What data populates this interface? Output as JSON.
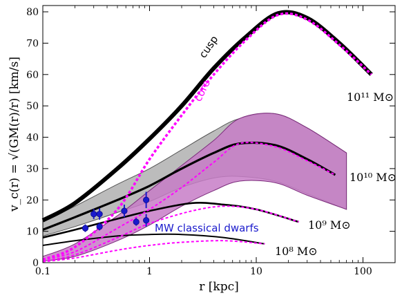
{
  "chart_data": {
    "type": "line",
    "xlabel": "r [kpc]",
    "ylabel": "v_c(r) = √(GM(r)/r) [km/s]",
    "xscale": "log",
    "xlim": [
      0.1,
      200
    ],
    "ylim": [
      0,
      82
    ],
    "x_ticks": [
      {
        "value": 0.1,
        "label": "0.1"
      },
      {
        "value": 1,
        "label": "1"
      },
      {
        "value": 10,
        "label": "10"
      },
      {
        "value": 100,
        "label": "100"
      }
    ],
    "y_ticks": [
      {
        "value": 0,
        "label": "0"
      },
      {
        "value": 10,
        "label": "10"
      },
      {
        "value": 20,
        "label": "20"
      },
      {
        "value": 30,
        "label": "30"
      },
      {
        "value": 40,
        "label": "40"
      },
      {
        "value": 50,
        "label": "50"
      },
      {
        "value": 60,
        "label": "60"
      },
      {
        "value": 70,
        "label": "70"
      },
      {
        "value": 80,
        "label": "80"
      }
    ],
    "colors": {
      "cusp": "#000000",
      "core": "#ff00ff",
      "band_cusp": "#a6a6a6",
      "band_core": "#c77dc7",
      "dwarfs": "#1a1acc"
    },
    "annotations": {
      "cusp": "cusp",
      "core": "core",
      "m11": "10¹¹ M⊙",
      "m10": "10¹⁰ M⊙",
      "m9": "10⁹ M⊙",
      "m8": "10⁸ M⊙",
      "dwarfs": "MW classical dwarfs"
    },
    "series": [
      {
        "halo": "m11",
        "profile": "cusp",
        "x": [
          0.1,
          0.2,
          0.5,
          1,
          2,
          4,
          8,
          16,
          30,
          60,
          120
        ],
        "y": [
          13.5,
          19,
          30,
          39.5,
          50,
          62,
          72,
          79.5,
          78,
          70,
          60
        ]
      },
      {
        "halo": "m11",
        "profile": "core",
        "x": [
          0.1,
          0.2,
          0.5,
          1,
          2,
          4,
          8,
          16,
          30,
          60,
          120
        ],
        "y": [
          1,
          5,
          17,
          33,
          47,
          60,
          71,
          79,
          77.5,
          69.5,
          60
        ]
      },
      {
        "halo": "m10",
        "profile": "cusp",
        "x": [
          0.1,
          0.2,
          0.5,
          1,
          2,
          4,
          7,
          15,
          30,
          55
        ],
        "y": [
          10.5,
          14.5,
          20,
          24.5,
          30,
          35,
          38,
          37.5,
          33,
          28
        ]
      },
      {
        "halo": "m10",
        "profile": "core",
        "x": [
          0.1,
          0.2,
          0.5,
          1,
          2,
          4,
          7,
          15,
          30,
          55
        ],
        "y": [
          1,
          3.5,
          11,
          17,
          24,
          32,
          38,
          37,
          32.5,
          28
        ]
      },
      {
        "halo": "m9",
        "profile": "cusp",
        "x": [
          0.1,
          0.2,
          0.5,
          1,
          2.5,
          5,
          10,
          25
        ],
        "y": [
          8,
          10.5,
          14,
          16.5,
          19,
          18.5,
          17,
          13
        ]
      },
      {
        "halo": "m9",
        "profile": "core",
        "x": [
          0.1,
          0.2,
          0.5,
          1,
          2.5,
          5,
          10,
          25
        ],
        "y": [
          0.5,
          2.5,
          8,
          12.5,
          16.5,
          18,
          17,
          13
        ]
      },
      {
        "halo": "m8",
        "profile": "cusp",
        "x": [
          0.1,
          0.2,
          0.5,
          1,
          2,
          5,
          12
        ],
        "y": [
          5.5,
          7,
          8.5,
          9,
          9,
          8,
          6
        ]
      },
      {
        "halo": "m8",
        "profile": "core",
        "x": [
          0.1,
          0.2,
          0.5,
          1,
          2,
          5,
          12
        ],
        "y": [
          0.3,
          1.5,
          4,
          5.5,
          6.5,
          7,
          6
        ]
      }
    ],
    "bands": [
      {
        "name": "m10-cusp",
        "x": [
          0.1,
          0.2,
          0.5,
          1,
          2,
          4,
          7,
          15,
          30,
          70
        ],
        "upper": [
          13,
          18,
          25,
          30,
          36,
          42,
          46,
          47.5,
          43,
          35
        ],
        "lower": [
          8.5,
          11.5,
          16,
          19.5,
          24,
          27,
          27.5,
          26,
          22,
          17
        ]
      },
      {
        "name": "m10-core",
        "x": [
          0.1,
          0.2,
          0.5,
          1,
          2,
          4,
          7,
          15,
          30,
          70
        ],
        "upper": [
          2,
          6,
          15,
          23,
          31,
          39,
          46,
          47.5,
          43,
          35
        ],
        "lower": [
          0.5,
          2,
          7,
          12,
          18,
          23,
          26,
          25.5,
          21.5,
          17
        ]
      }
    ],
    "points": [
      {
        "x": 0.25,
        "y": 11,
        "yerr": 1.2
      },
      {
        "x": 0.3,
        "y": 15.5,
        "yerr": 1.6
      },
      {
        "x": 0.34,
        "y": 15.5,
        "yerr": 1.8
      },
      {
        "x": 0.34,
        "y": 11.5,
        "yerr": 1.2
      },
      {
        "x": 0.58,
        "y": 16.5,
        "yerr": 2
      },
      {
        "x": 0.75,
        "y": 13,
        "yerr": 1.2
      },
      {
        "x": 0.93,
        "y": 13.5,
        "yerr": 2
      },
      {
        "x": 0.93,
        "y": 20,
        "yerr": 2.6
      }
    ]
  }
}
